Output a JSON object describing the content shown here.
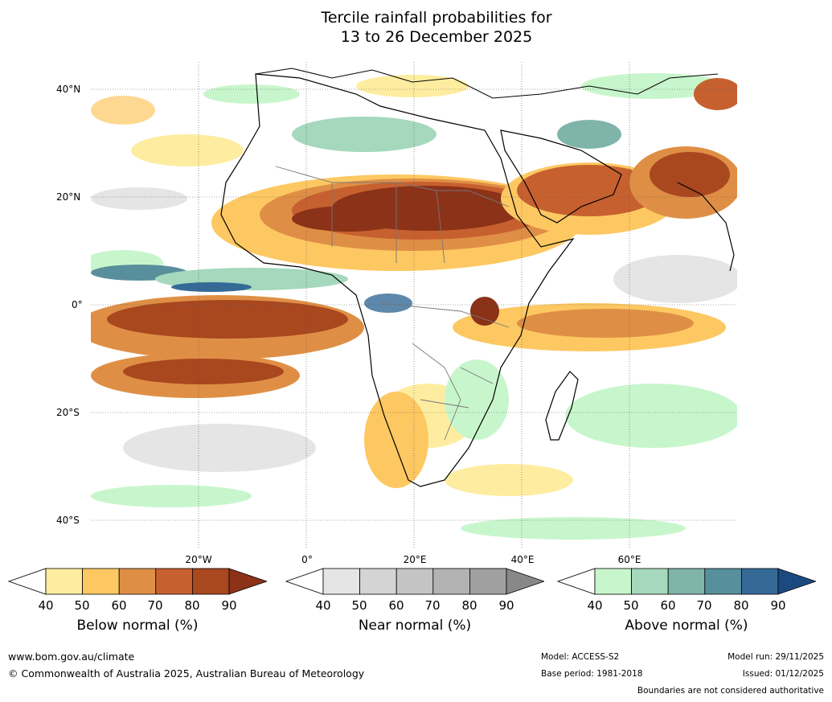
{
  "title": {
    "line1": "Tercile rainfall probabilities for",
    "line2": "13 to 26 December 2025"
  },
  "lat_labels": [
    "40°N",
    "20°N",
    "0°",
    "20°S",
    "40°S"
  ],
  "lon_labels": [
    "20°W",
    "0°",
    "20°E",
    "40°E",
    "60°E"
  ],
  "legend": {
    "below": {
      "title": "Below normal (%)",
      "ticks": [
        "40",
        "50",
        "60",
        "70",
        "80",
        "90"
      ],
      "colors": [
        "#ffffff",
        "#feeda0",
        "#fdc862",
        "#df8f45",
        "#c7602f",
        "#a9471f",
        "#8b3218"
      ]
    },
    "near": {
      "title": "Near normal (%)",
      "ticks": [
        "40",
        "50",
        "60",
        "70",
        "80",
        "90"
      ],
      "colors": [
        "#ffffff",
        "#e5e5e5",
        "#d4d4d4",
        "#c4c4c4",
        "#b3b3b3",
        "#a0a0a0",
        "#888888"
      ]
    },
    "above": {
      "title": "Above normal (%)",
      "ticks": [
        "40",
        "50",
        "60",
        "70",
        "80",
        "90"
      ],
      "colors": [
        "#ffffff",
        "#c8f6cc",
        "#a5d8bc",
        "#7fb4ab",
        "#588f9c",
        "#356a97",
        "#1c4a80"
      ]
    }
  },
  "footer": {
    "url": "www.bom.gov.au/climate",
    "copyright": "© Commonwealth of Australia 2025, Australian Bureau of Meteorology",
    "model": "Model: ACCESS-S2",
    "base_period": "Base period: 1981-2018",
    "model_run": "Model run: 29/11/2025",
    "issued": "Issued: 01/12/2025",
    "disclaimer": "Boundaries are not considered authoritative"
  }
}
